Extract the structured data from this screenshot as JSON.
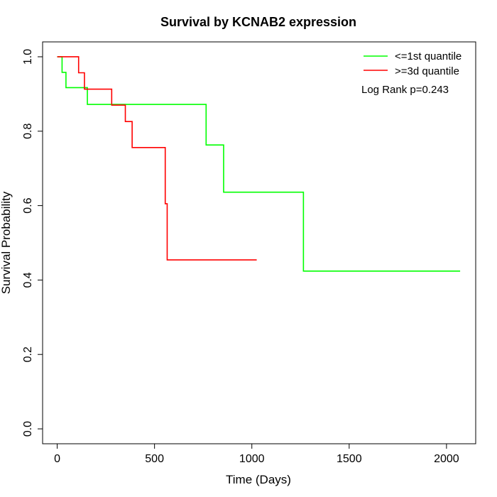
{
  "chart_data": {
    "type": "line",
    "title": "Survival by KCNAB2 expression",
    "xlabel": "Time (Days)",
    "ylabel": "Survival Probability",
    "xlim": [
      -75,
      2150
    ],
    "ylim": [
      -0.04,
      1.04
    ],
    "xticks": [
      0,
      500,
      1000,
      1500,
      2000
    ],
    "yticks": [
      0.0,
      0.2,
      0.4,
      0.6,
      0.8,
      1.0
    ],
    "xtick_labels": [
      "0",
      "500",
      "1000",
      "1500",
      "2000"
    ],
    "ytick_labels": [
      "0.0",
      "0.2",
      "0.4",
      "0.6",
      "0.8",
      "1.0"
    ],
    "grid": false,
    "legend_position": "top-right",
    "annotation": "Log Rank p=0.243",
    "series": [
      {
        "name": "<=1st quantile",
        "color": "#00ff00",
        "step_x": [
          0,
          25,
          45,
          155,
          765,
          855,
          1265,
          2070
        ],
        "step_y": [
          1.0,
          0.958,
          0.917,
          0.872,
          0.763,
          0.636,
          0.424,
          0.424
        ]
      },
      {
        "name": ">=3d quantile",
        "color": "#ff0000",
        "step_x": [
          0,
          110,
          140,
          280,
          350,
          385,
          555,
          565,
          1025
        ],
        "step_y": [
          1.0,
          0.957,
          0.913,
          0.87,
          0.826,
          0.756,
          0.605,
          0.454,
          0.454
        ]
      }
    ]
  }
}
